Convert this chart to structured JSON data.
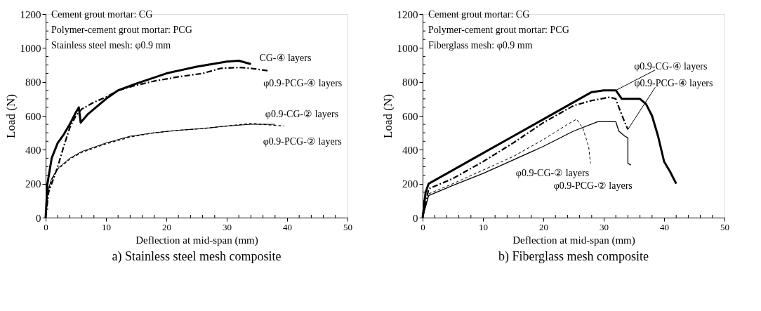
{
  "chart_data": [
    {
      "type": "line",
      "title": "a) Stainless steel mesh composite",
      "xlabel": "Deflection at mid-span (mm)",
      "ylabel": "Load (N)",
      "annotations": [
        "Cement grout mortar: CG",
        "Polymer-cement grout mortar: PCG",
        "Stainless steel mesh: φ0.9 mm"
      ],
      "xlim": [
        0,
        50
      ],
      "ylim": [
        0,
        1200
      ],
      "xticks": [
        0,
        {
          "value": 2,
          "label": null
        },
        {
          "value": 4,
          "label": null
        },
        {
          "value": 6,
          "label": null
        },
        {
          "value": 8,
          "label": null
        },
        10,
        {
          "value": 12,
          "label": null
        },
        {
          "value": 14,
          "label": null
        },
        {
          "value": 16,
          "label": null
        },
        {
          "value": 18,
          "label": null
        },
        20,
        {
          "value": 22,
          "label": null
        },
        {
          "value": 24,
          "label": null
        },
        {
          "value": 26,
          "label": null
        },
        {
          "value": 28,
          "label": null
        },
        30,
        {
          "value": 32,
          "label": null
        },
        {
          "value": 34,
          "label": null
        },
        {
          "value": 36,
          "label": null
        },
        {
          "value": 38,
          "label": null
        },
        40,
        {
          "value": 42,
          "label": null
        },
        {
          "value": 44,
          "label": null
        },
        {
          "value": 46,
          "label": null
        },
        {
          "value": 48,
          "label": null
        },
        50
      ],
      "yticks": [
        0,
        {
          "value": 50,
          "label": null
        },
        {
          "value": 100,
          "label": null
        },
        {
          "value": 150,
          "label": null
        },
        200,
        {
          "value": 250,
          "label": null
        },
        {
          "value": 300,
          "label": null
        },
        {
          "value": 350,
          "label": null
        },
        400,
        {
          "value": 450,
          "label": null
        },
        {
          "value": 500,
          "label": null
        },
        {
          "value": 550,
          "label": null
        },
        600,
        {
          "value": 650,
          "label": null
        },
        {
          "value": 700,
          "label": null
        },
        {
          "value": 750,
          "label": null
        },
        800,
        {
          "value": 850,
          "label": null
        },
        {
          "value": 900,
          "label": null
        },
        {
          "value": 950,
          "label": null
        },
        1000,
        {
          "value": 1050,
          "label": null
        },
        {
          "value": 1100,
          "label": null
        },
        {
          "value": 1150,
          "label": null
        },
        1200
      ],
      "grid": false,
      "marker": "none",
      "series": [
        {
          "name": "CG-④ layers",
          "color": "#000000",
          "line_style": "solid",
          "x": [
            0,
            0.3,
            1,
            2,
            3,
            4,
            5,
            5.5,
            5.8,
            7,
            10,
            12,
            15,
            20,
            25,
            30,
            32,
            34
          ],
          "values": [
            0,
            200,
            350,
            440,
            490,
            550,
            620,
            650,
            560,
            610,
            700,
            750,
            790,
            850,
            890,
            920,
            925,
            905
          ]
        },
        {
          "name": "φ0.9-PCG-④ layers",
          "color": "#000000",
          "line_style": "dashed",
          "x": [
            0,
            0.5,
            2,
            3,
            4,
            5,
            6,
            8,
            10,
            12,
            15,
            18,
            22,
            26,
            29,
            32,
            34,
            37
          ],
          "values": [
            0,
            150,
            300,
            420,
            530,
            600,
            640,
            680,
            710,
            750,
            780,
            805,
            830,
            850,
            880,
            885,
            880,
            865
          ]
        },
        {
          "name": "φ0.9-CG-② layers",
          "color": "#000000",
          "line_style": "solid",
          "x": [
            0,
            0.3,
            1,
            2,
            4,
            6,
            10,
            14,
            18,
            22,
            26,
            30,
            34,
            38
          ],
          "values": [
            0,
            150,
            230,
            290,
            350,
            390,
            440,
            480,
            500,
            515,
            525,
            540,
            550,
            550
          ]
        },
        {
          "name": "φ0.9-PCG-② layers",
          "color": "#000000",
          "line_style": "dotted",
          "x": [
            0,
            0.3,
            1,
            2,
            4,
            6,
            10,
            14,
            18,
            22,
            26,
            30,
            34,
            39.5
          ],
          "values": [
            0,
            140,
            225,
            285,
            345,
            385,
            435,
            475,
            500,
            515,
            525,
            540,
            555,
            540
          ]
        }
      ]
    },
    {
      "type": "line",
      "title": "b) Fiberglass mesh composite",
      "xlabel": "Deflection at mid-span (mm)",
      "ylabel": "Load (N)",
      "annotations": [
        "Cement grout mortar: CG",
        "Polymer-cement grout mortar: PCG",
        "Fiberglass mesh: φ0.9 mm"
      ],
      "xlim": [
        0,
        50
      ],
      "ylim": [
        0,
        1200
      ],
      "xticks": [
        0,
        {
          "value": 2,
          "label": null
        },
        {
          "value": 4,
          "label": null
        },
        {
          "value": 6,
          "label": null
        },
        {
          "value": 8,
          "label": null
        },
        10,
        {
          "value": 12,
          "label": null
        },
        {
          "value": 14,
          "label": null
        },
        {
          "value": 16,
          "label": null
        },
        {
          "value": 18,
          "label": null
        },
        20,
        {
          "value": 22,
          "label": null
        },
        {
          "value": 24,
          "label": null
        },
        {
          "value": 26,
          "label": null
        },
        {
          "value": 28,
          "label": null
        },
        30,
        {
          "value": 32,
          "label": null
        },
        {
          "value": 34,
          "label": null
        },
        {
          "value": 36,
          "label": null
        },
        {
          "value": 38,
          "label": null
        },
        40,
        {
          "value": 42,
          "label": null
        },
        {
          "value": 44,
          "label": null
        },
        {
          "value": 46,
          "label": null
        },
        {
          "value": 48,
          "label": null
        },
        50
      ],
      "yticks": [
        0,
        {
          "value": 50,
          "label": null
        },
        {
          "value": 100,
          "label": null
        },
        {
          "value": 150,
          "label": null
        },
        200,
        {
          "value": 250,
          "label": null
        },
        {
          "value": 300,
          "label": null
        },
        {
          "value": 350,
          "label": null
        },
        400,
        {
          "value": 450,
          "label": null
        },
        {
          "value": 500,
          "label": null
        },
        {
          "value": 550,
          "label": null
        },
        600,
        {
          "value": 650,
          "label": null
        },
        {
          "value": 700,
          "label": null
        },
        {
          "value": 750,
          "label": null
        },
        800,
        {
          "value": 850,
          "label": null
        },
        {
          "value": 900,
          "label": null
        },
        {
          "value": 950,
          "label": null
        },
        1000,
        {
          "value": 1050,
          "label": null
        },
        {
          "value": 1100,
          "label": null
        },
        {
          "value": 1150,
          "label": null
        },
        1200
      ],
      "grid": false,
      "marker": "none",
      "series": [
        {
          "name": "φ0.9-CG-④ layers",
          "color": "#000000",
          "line_style": "solid",
          "x": [
            0,
            0.5,
            1,
            2,
            5,
            10,
            15,
            20,
            25,
            28,
            30,
            32,
            33,
            36,
            37,
            38,
            39,
            40,
            41,
            42
          ],
          "values": [
            0,
            150,
            200,
            220,
            280,
            380,
            480,
            580,
            680,
            740,
            750,
            750,
            700,
            700,
            670,
            600,
            480,
            330,
            270,
            200
          ]
        },
        {
          "name": "φ0.9-PCG-④ layers",
          "color": "#000000",
          "line_style": "dashed",
          "x": [
            0,
            1,
            5,
            10,
            15,
            20,
            25,
            28,
            31,
            32,
            32.5,
            33.5,
            34
          ],
          "values": [
            0,
            170,
            230,
            330,
            440,
            560,
            660,
            690,
            710,
            700,
            650,
            560,
            520
          ]
        },
        {
          "name": "φ0.9-CG-② layers",
          "color": "#000000",
          "line_style": "dotted",
          "x": [
            0,
            1,
            5,
            10,
            15,
            20,
            24,
            25.5,
            26.5,
            27.5,
            27.8
          ],
          "values": [
            0,
            140,
            200,
            280,
            360,
            460,
            550,
            580,
            530,
            420,
            320
          ]
        },
        {
          "name": "φ0.9-PCG-② layers",
          "color": "#000000",
          "line_style": "solid",
          "x": [
            0,
            1,
            5,
            10,
            15,
            20,
            25,
            29,
            32,
            32.5,
            33.5,
            34,
            34,
            34.5
          ],
          "values": [
            0,
            130,
            190,
            260,
            340,
            420,
            510,
            565,
            565,
            510,
            480,
            470,
            320,
            310
          ]
        }
      ]
    }
  ]
}
